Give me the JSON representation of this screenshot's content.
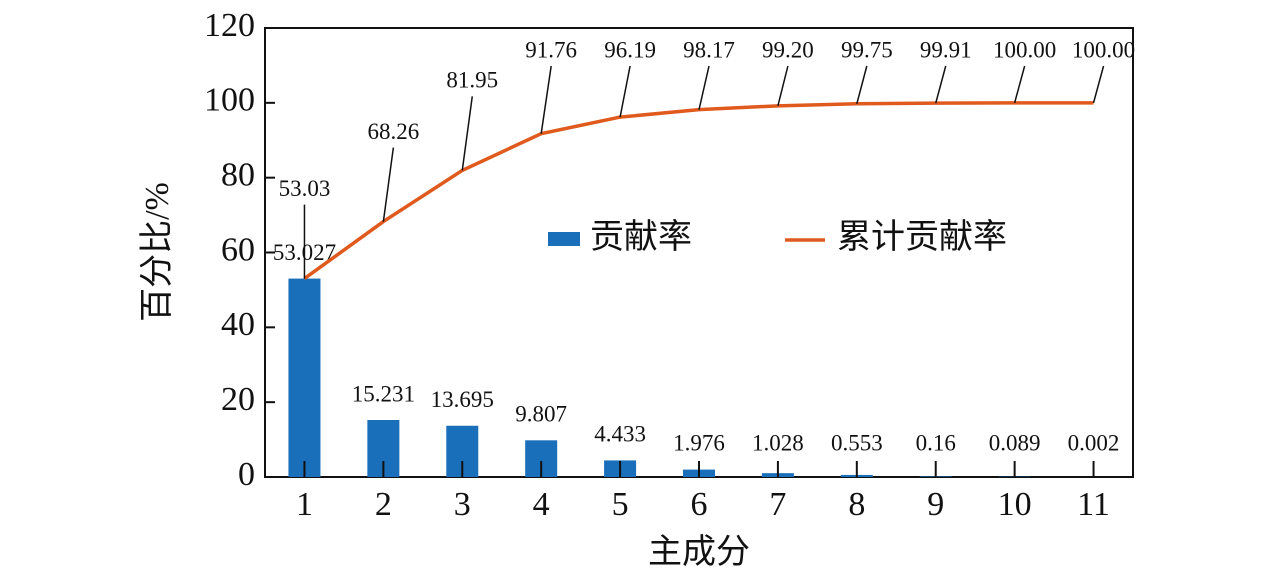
{
  "chart_data": {
    "type": "bar_line",
    "xlabel": "主成分",
    "ylabel": "百分比/%",
    "categories": [
      "1",
      "2",
      "3",
      "4",
      "5",
      "6",
      "7",
      "8",
      "9",
      "10",
      "11"
    ],
    "series": [
      {
        "name": "贡献率",
        "type": "bar",
        "color": "#1a6fba",
        "values": [
          53.027,
          15.231,
          13.695,
          9.807,
          4.433,
          1.976,
          1.028,
          0.553,
          0.16,
          0.089,
          0.002
        ]
      },
      {
        "name": "累计贡献率",
        "type": "line",
        "color": "#e05a1e",
        "values": [
          53.03,
          68.26,
          81.95,
          91.76,
          96.19,
          98.17,
          99.2,
          99.75,
          99.91,
          100,
          100
        ],
        "value_labels": [
          "53.03",
          "68.26",
          "81.95",
          "91.76",
          "96.19",
          "98.17",
          "99.20",
          "99.75",
          "99.91",
          "100.00",
          "100.00"
        ]
      }
    ],
    "ylim": [
      0,
      120
    ],
    "yticks": [
      0,
      20,
      40,
      60,
      80,
      100,
      120
    ]
  }
}
